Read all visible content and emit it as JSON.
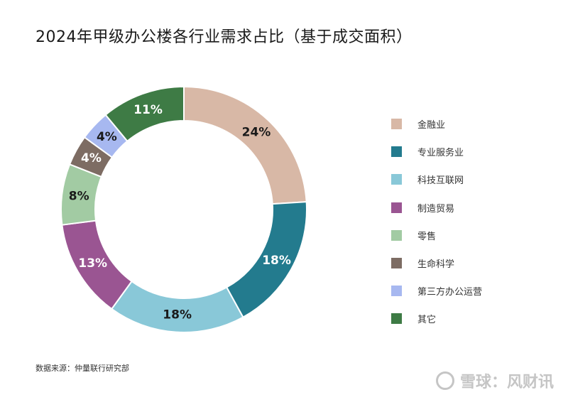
{
  "title": "2024年甲级办公楼各行业需求占比（基于成交面积）",
  "source": "数据来源：仲量联行研究部",
  "watermark": "雪球：风财讯",
  "chart_data": {
    "type": "pie",
    "variant": "donut",
    "title": "2024年甲级办公楼各行业需求占比（基于成交面积）",
    "unit": "%",
    "legend_position": "right",
    "series": [
      {
        "name": "金融业",
        "value": 24,
        "label": "24%",
        "color": "#D8B8A6",
        "label_color": "#1a1a1a"
      },
      {
        "name": "专业服务业",
        "value": 18,
        "label": "18%",
        "color": "#237B8E",
        "label_color": "#ffffff"
      },
      {
        "name": "科技互联网",
        "value": 18,
        "label": "18%",
        "color": "#89C8D8",
        "label_color": "#1a1a1a"
      },
      {
        "name": "制造贸易",
        "value": 13,
        "label": "13%",
        "color": "#9A5592",
        "label_color": "#ffffff"
      },
      {
        "name": "零售",
        "value": 8,
        "label": "8%",
        "color": "#A2CBA3",
        "label_color": "#1a1a1a"
      },
      {
        "name": "生命科学",
        "value": 4,
        "label": "4%",
        "color": "#7D6C63",
        "label_color": "#ffffff"
      },
      {
        "name": "第三方办公运营",
        "value": 4,
        "label": "4%",
        "color": "#A7B8F0",
        "label_color": "#1a1a1a"
      },
      {
        "name": "其它",
        "value": 11,
        "label": "11%",
        "color": "#3E7B45",
        "label_color": "#ffffff"
      }
    ]
  }
}
